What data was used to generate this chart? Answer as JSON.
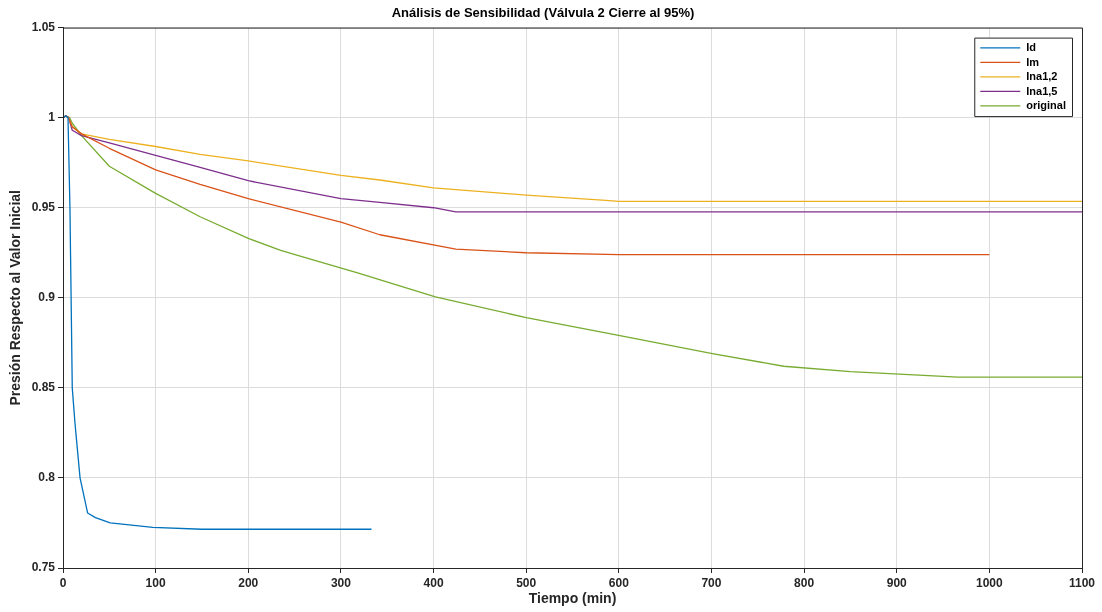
{
  "chart_data": {
    "type": "line",
    "title": "Análisis de Sensibilidad (Válvula 2 Cierre al 95%)",
    "xlabel": "Tiempo (min)",
    "ylabel": "Presión Respecto al Valor Inicial",
    "xlim": [
      0,
      1100
    ],
    "xticks": [
      0,
      100,
      200,
      300,
      400,
      500,
      600,
      700,
      800,
      900,
      1000,
      1100
    ],
    "ylim": [
      0.75,
      1.05
    ],
    "yticks": [
      0.75,
      0.8,
      0.85,
      0.9,
      0.95,
      1,
      1.05
    ],
    "grid": true,
    "legend": "top right",
    "marker": "none",
    "line_style": "solid",
    "series": [
      {
        "name": "Id",
        "color": "#0072bd",
        "x": [
          0,
          3,
          5.4,
          7.5,
          10,
          13,
          18.4,
          26.6,
          35,
          51,
          97,
          150,
          250,
          333
        ],
        "values": [
          1,
          1.001,
          1,
          0.95,
          0.85,
          0.83,
          0.8,
          0.7805,
          0.778,
          0.775,
          0.7726,
          0.7715,
          0.7715,
          0.7715
        ]
      },
      {
        "name": "Im",
        "color": "#d95319",
        "x": [
          0,
          3,
          6,
          10,
          20,
          50,
          100,
          148,
          200,
          300,
          342,
          424,
          500,
          600,
          700,
          800,
          900,
          1000
        ],
        "values": [
          1,
          1.001,
          1,
          0.995,
          0.991,
          0.983,
          0.971,
          0.963,
          0.955,
          0.942,
          0.935,
          0.927,
          0.925,
          0.924,
          0.924,
          0.924,
          0.924,
          0.924
        ]
      },
      {
        "name": "Ina1,2",
        "color": "#edb120",
        "x": [
          6,
          10,
          20,
          50,
          100,
          148,
          200,
          300,
          342,
          400,
          500,
          590,
          600,
          700,
          800,
          900,
          1000,
          1100
        ],
        "values": [
          1,
          0.995,
          0.991,
          0.988,
          0.984,
          0.9796,
          0.976,
          0.968,
          0.9654,
          0.961,
          0.957,
          0.954,
          0.9535,
          0.9535,
          0.9535,
          0.9535,
          0.9535,
          0.9535
        ]
      },
      {
        "name": "Ina1,5",
        "color": "#7e2f8e",
        "x": [
          0,
          3,
          6,
          10,
          20,
          50,
          100,
          148,
          200,
          300,
          342,
          400,
          424,
          460,
          600,
          800,
          1000,
          1100
        ],
        "values": [
          1,
          1.001,
          1,
          0.993,
          0.99,
          0.986,
          0.979,
          0.9724,
          0.965,
          0.955,
          0.953,
          0.95,
          0.9477,
          0.9477,
          0.9477,
          0.9477,
          0.9477,
          0.9477
        ]
      },
      {
        "name": "original",
        "color": "#77ac30",
        "x": [
          0,
          3,
          7,
          10,
          20,
          50,
          100,
          148,
          200,
          235,
          318,
          402,
          500,
          604,
          701,
          778,
          850,
          966,
          1000,
          1100
        ],
        "values": [
          1,
          1.001,
          1,
          0.997,
          0.99,
          0.973,
          0.958,
          0.945,
          0.933,
          0.9263,
          0.9138,
          0.9005,
          0.889,
          0.8787,
          0.869,
          0.862,
          0.859,
          0.856,
          0.856,
          0.856
        ]
      }
    ]
  }
}
